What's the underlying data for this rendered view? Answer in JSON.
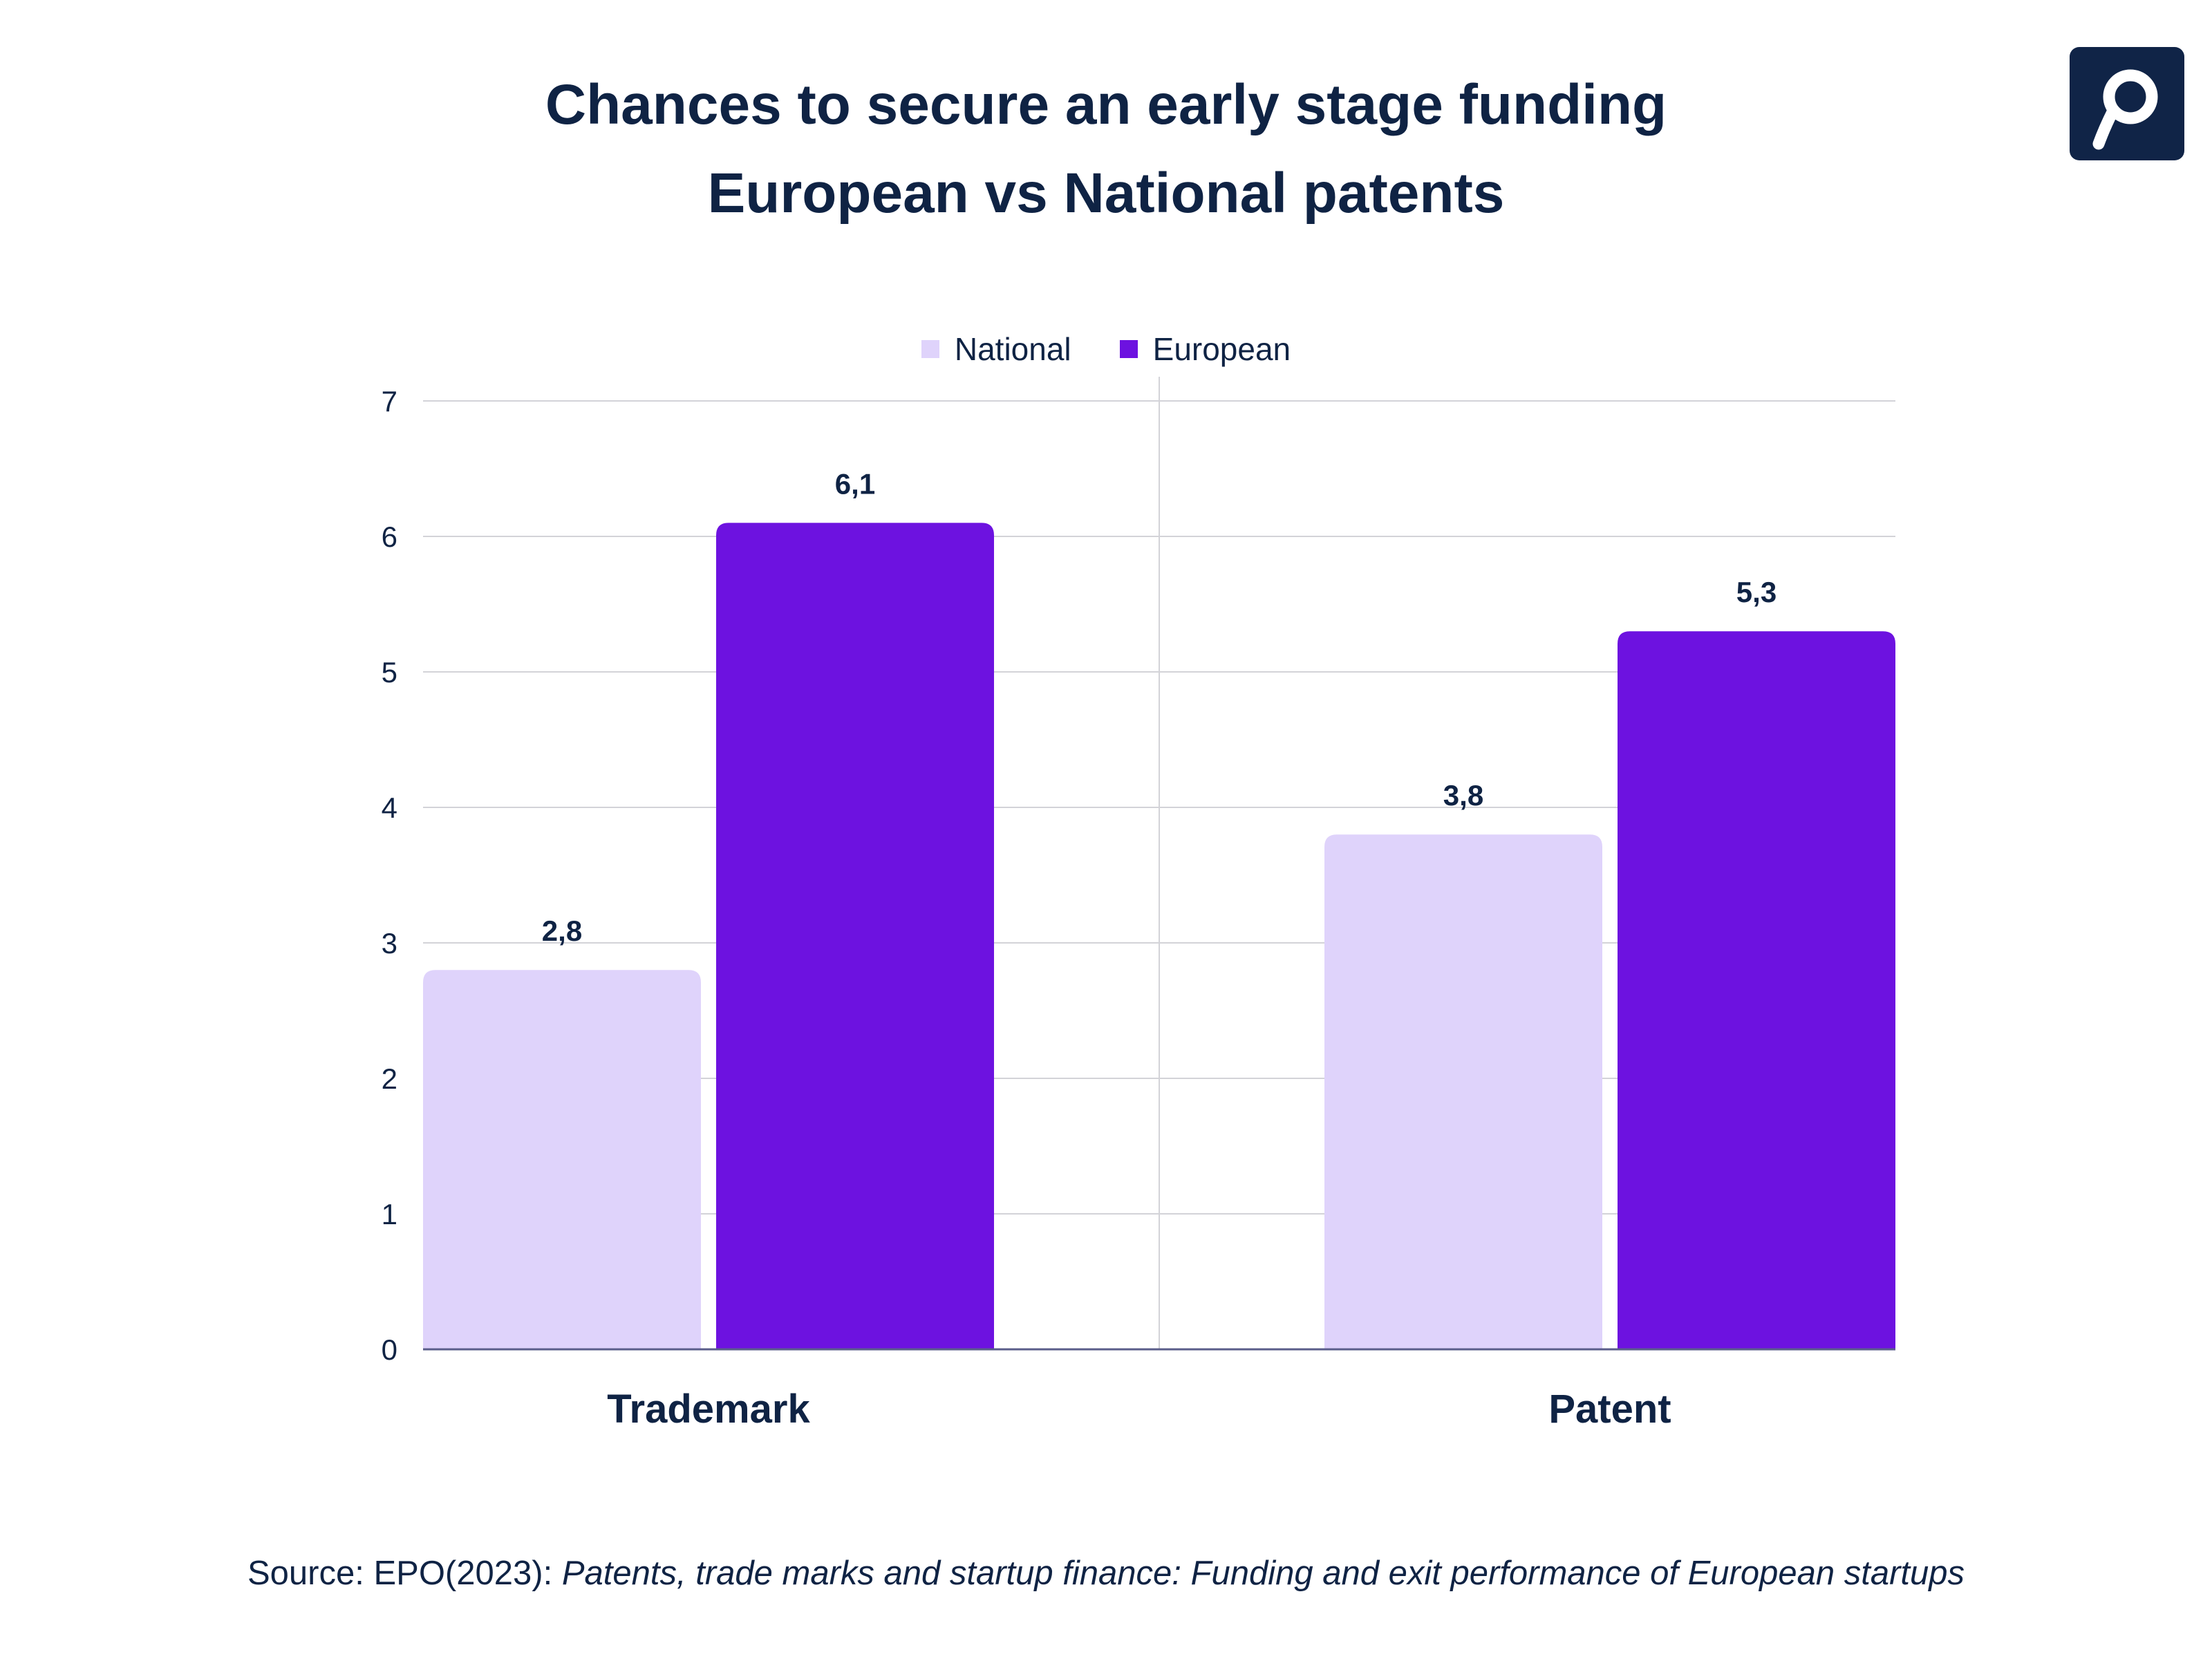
{
  "title": {
    "line1": "Chances to secure an early stage funding",
    "line2": "European vs National patents"
  },
  "logo": {
    "icon": "p-logo-icon",
    "background_color": "#102447",
    "glyph_color": "#ffffff"
  },
  "source": {
    "prefix": "Source: EPO(2023): ",
    "title": "Patents, trade marks and startup finance: Funding and exit performance of European startups"
  },
  "chart_data": {
    "type": "bar",
    "title": "Chances to secure an early stage funding European vs National patents",
    "xlabel": "",
    "ylabel": "",
    "categories": [
      "Trademark",
      "Patent"
    ],
    "series": [
      {
        "name": "National",
        "values": [
          2.8,
          3.8
        ],
        "labels": [
          "2,8",
          "3,8"
        ],
        "color": "#dfd3fb"
      },
      {
        "name": "European",
        "values": [
          6.1,
          5.3
        ],
        "labels": [
          "6,1",
          "5,3"
        ],
        "color": "#6d12e0"
      }
    ],
    "ylim": [
      0,
      7
    ],
    "yticks": [
      "0",
      "1",
      "2",
      "3",
      "4",
      "5",
      "6",
      "7"
    ],
    "grid": true,
    "legend": "top-center",
    "colors": {
      "text": "#0f2344",
      "grid": "#d3d3d8",
      "axis": "#5a5d8a"
    }
  }
}
